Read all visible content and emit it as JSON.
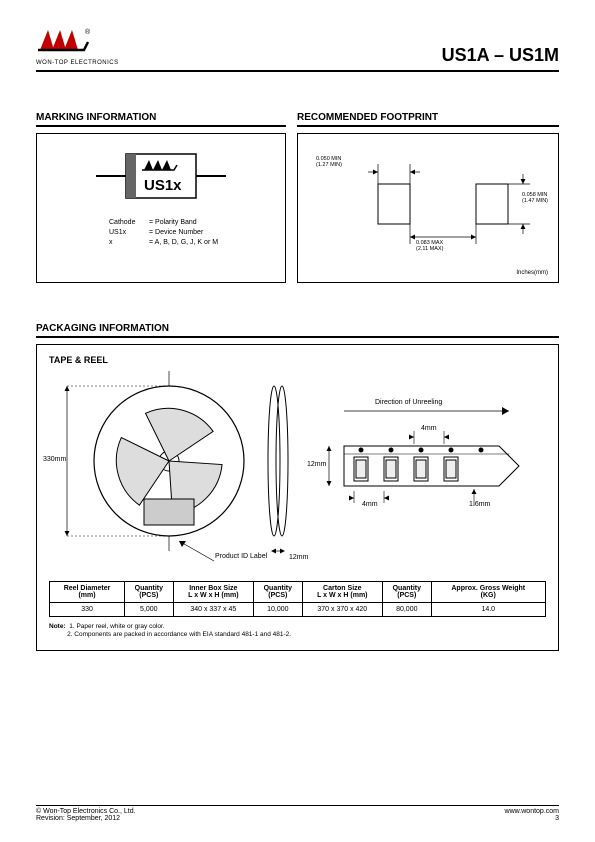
{
  "header": {
    "company": "WON-TOP ELECTRONICS",
    "part_title": "US1A – US1M"
  },
  "marking": {
    "title": "MARKING INFORMATION",
    "chip_text": "US1x",
    "labels": [
      {
        "k": "Cathode",
        "v": "= Polarity Band"
      },
      {
        "k": "US1x",
        "v": "= Device Number"
      },
      {
        "k": "x",
        "v": "= A, B, D, G, J, K or M"
      }
    ]
  },
  "footprint": {
    "title": "RECOMMENDED FOOTPRINT",
    "dim_top": "0.050 MIN",
    "dim_top_mm": "(1.27 MIN)",
    "dim_right": "0.058 MIN",
    "dim_right_mm": "(1.47 MIN)",
    "dim_bottom": "0.083 MAX",
    "dim_bottom_mm": "(2.11 MAX)",
    "units": "Inches(mm)"
  },
  "packaging": {
    "title": "PACKAGING INFORMATION",
    "subtitle": "TAPE & REEL",
    "reel_height": "330mm",
    "reel_width": "12mm",
    "product_id": "Product ID Label",
    "direction": "Direction of Unreeling",
    "tape_h": "12mm",
    "tape_p1": "4mm",
    "tape_p2": "4mm",
    "tape_t": "1.6mm"
  },
  "table": {
    "headers": [
      "Reel Diameter\n(mm)",
      "Quantity\n(PCS)",
      "Inner Box Size\nL x W x H (mm)",
      "Quantity\n(PCS)",
      "Carton Size\nL x W x H (mm)",
      "Quantity\n(PCS)",
      "Approx. Gross Weight\n(KG)"
    ],
    "row": [
      "330",
      "5,000",
      "340 x 337 x 45",
      "10,000",
      "370 x 370 x 420",
      "80,000",
      "14.0"
    ]
  },
  "notes": {
    "label": "Note:",
    "n1": "1. Paper reel, white or gray color.",
    "n2": "2. Components are packed in accordance with EIA standard 481-1 and 481-2."
  },
  "footer": {
    "left1": "© Won-Top Electronics Co., Ltd.",
    "left2": "Revision: September, 2012",
    "right1": "www.wontop.com",
    "right2": "3"
  },
  "colors": {
    "accent": "#c00000",
    "black": "#000000"
  }
}
